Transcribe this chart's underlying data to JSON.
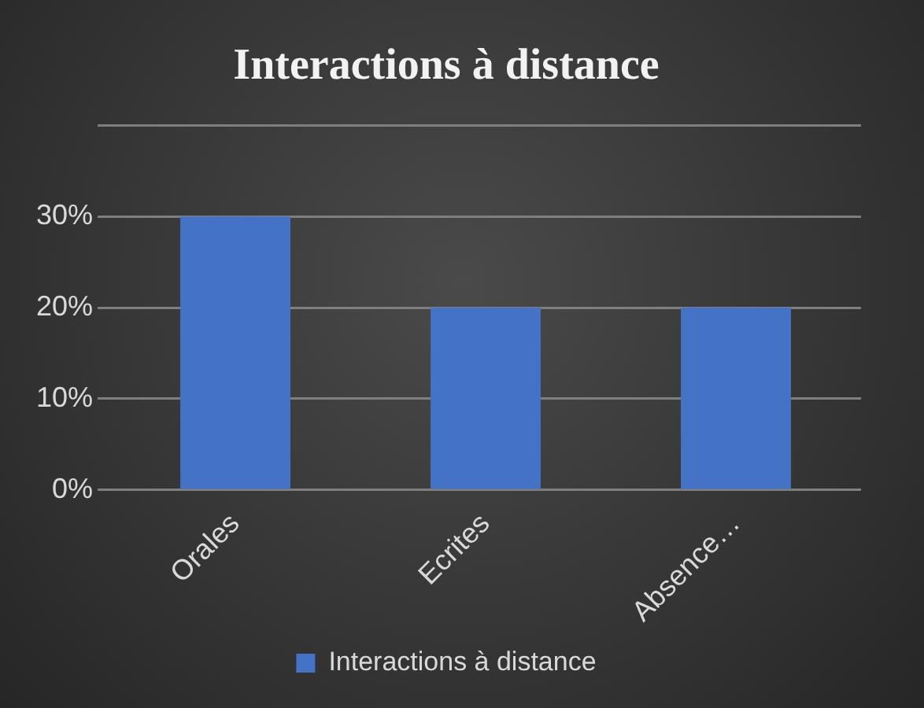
{
  "chart_data": {
    "type": "bar",
    "title": "Interactions à distance",
    "categories": [
      "Orales",
      "Ecrites",
      "Absence…"
    ],
    "series": [
      {
        "name": "Interactions à distance",
        "color": "#4472c4",
        "values": [
          30,
          20,
          20
        ]
      }
    ],
    "ylim": [
      0,
      40
    ],
    "yticks": [
      {
        "value": 0,
        "label": "0%"
      },
      {
        "value": 10,
        "label": "10%"
      },
      {
        "value": 20,
        "label": "20%"
      },
      {
        "value": 30,
        "label": "30%"
      },
      {
        "value": 40,
        "label": null
      }
    ],
    "grid": "y",
    "legend": "bottom"
  }
}
